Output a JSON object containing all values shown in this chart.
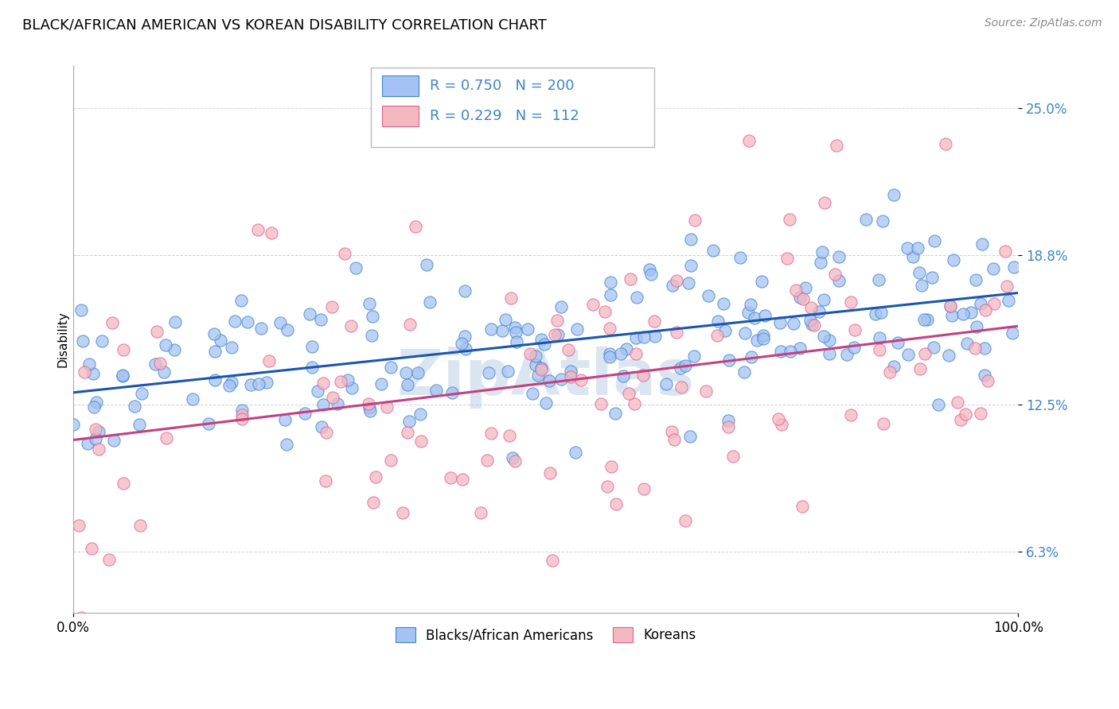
{
  "title": "BLACK/AFRICAN AMERICAN VS KOREAN DISABILITY CORRELATION CHART",
  "source": "Source: ZipAtlas.com",
  "ylabel": "Disability",
  "xlim": [
    0.0,
    1.0
  ],
  "ylim": [
    0.037,
    0.268
  ],
  "yticks": [
    0.063,
    0.125,
    0.188,
    0.25
  ],
  "ytick_labels": [
    "6.3%",
    "12.5%",
    "18.8%",
    "25.0%"
  ],
  "xtick_labels": [
    "0.0%",
    "100.0%"
  ],
  "blue_R": 0.75,
  "blue_N": 200,
  "pink_R": 0.229,
  "pink_N": 112,
  "blue_color": "#a4c2f4",
  "pink_color": "#f4b8c1",
  "blue_edge_color": "#3d85c8",
  "pink_edge_color": "#e06090",
  "blue_line_color": "#1a56b0",
  "pink_line_color": "#c44080",
  "tick_color": "#3d85c8",
  "watermark": "ZipAtlas",
  "watermark_color": "#b8cce4",
  "background_color": "#ffffff",
  "legend_label_blue": "Blacks/African Americans",
  "legend_label_pink": "Koreans",
  "title_fontsize": 13,
  "source_fontsize": 10,
  "label_fontsize": 11,
  "tick_fontsize": 12,
  "legend_fontsize": 12,
  "blue_line_start_y": 0.13,
  "blue_line_end_y": 0.172,
  "pink_line_start_y": 0.11,
  "pink_line_end_y": 0.158
}
